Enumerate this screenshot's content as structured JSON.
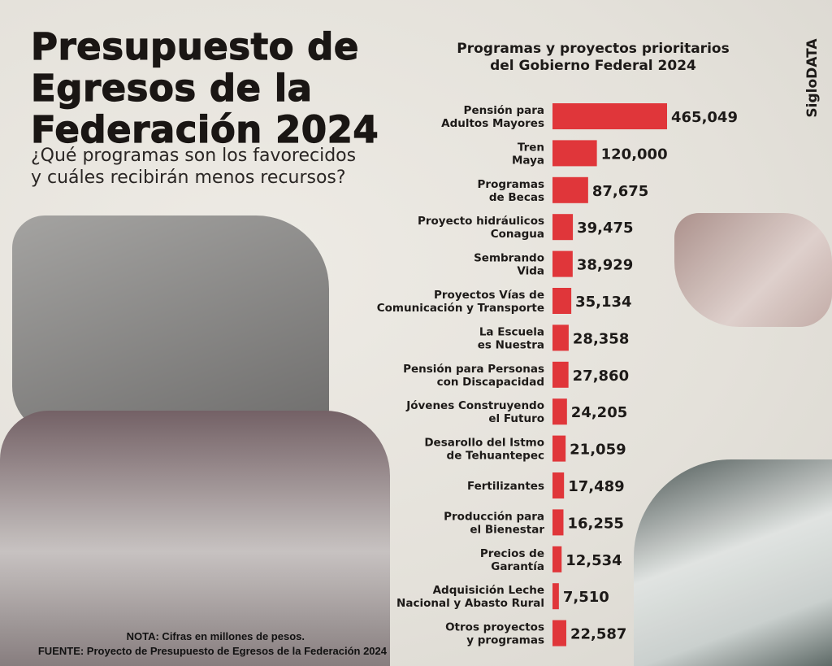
{
  "header": {
    "title_lines": [
      "Presupuesto de",
      "Egresos de la",
      "Federación 2024"
    ],
    "subtitle_lines": [
      "¿Qué programas son los favorecidos",
      "y cuáles recibirán menos recursos?"
    ]
  },
  "brand": "SigloDATA",
  "footer": {
    "note": "NOTA: Cifras en millones de pesos.",
    "source": "FUENTE: Proyecto de Presupuesto de Egresos de la Federación 2024"
  },
  "chart_data": {
    "type": "bar",
    "orientation": "horizontal",
    "title_lines": [
      "Programas y proyectos prioritarios",
      "del Gobierno Federal 2024"
    ],
    "bar_color": "#e0363a",
    "grid": false,
    "categories": [
      [
        "Pensión para",
        "Adultos Mayores"
      ],
      [
        "Tren",
        "Maya"
      ],
      [
        "Programas",
        "de Becas"
      ],
      [
        "Proyecto hidráulicos",
        "Conagua"
      ],
      [
        "Sembrando",
        "Vida"
      ],
      [
        "Proyectos Vías de",
        "Comunicación y Transporte"
      ],
      [
        "La Escuela",
        "es Nuestra"
      ],
      [
        "Pensión para Personas",
        "con Discapacidad"
      ],
      [
        "Jóvenes Construyendo",
        "el Futuro"
      ],
      [
        "Desarollo del Istmo",
        "de Tehuantepec"
      ],
      [
        "Fertilizantes"
      ],
      [
        "Producción para",
        "el Bienestar"
      ],
      [
        "Precios de",
        "Garantía"
      ],
      [
        "Adquisición Leche",
        "Nacional y Abasto Rural"
      ],
      [
        "Otros proyectos",
        "y programas"
      ]
    ],
    "values": [
      465049,
      120000,
      87675,
      39475,
      38929,
      35134,
      28358,
      27860,
      24205,
      21059,
      17489,
      16255,
      12534,
      7510,
      22587
    ],
    "value_labels": [
      "465,049",
      "120,000",
      "87,675",
      "39,475",
      "38,929",
      "35,134",
      "28,358",
      "27,860",
      "24,205",
      "21,059",
      "17,489",
      "16,255",
      "12,534",
      "7,510",
      "22,587"
    ]
  }
}
